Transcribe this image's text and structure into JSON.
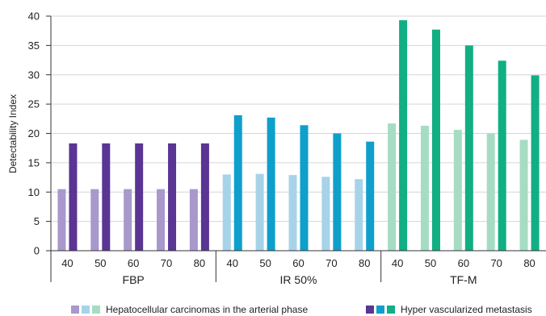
{
  "chart_data": {
    "type": "bar",
    "ylabel": "Detectability Index",
    "ylim": [
      0,
      40
    ],
    "yticks": [
      0,
      5,
      10,
      15,
      20,
      25,
      30,
      35,
      40
    ],
    "grid": true,
    "groups": [
      {
        "name": "FBP",
        "categories": [
          "40",
          "50",
          "60",
          "70",
          "80"
        ],
        "series": [
          {
            "name": "Hepatocellular carcinomas in the arterial phase",
            "color": "#a898cc",
            "values": [
              10.5,
              10.5,
              10.5,
              10.5,
              10.5
            ]
          },
          {
            "name": "Hyper vascularized metastasis",
            "color": "#5a3593",
            "values": [
              18.3,
              18.3,
              18.3,
              18.3,
              18.3
            ]
          }
        ]
      },
      {
        "name": "IR 50%",
        "categories": [
          "40",
          "50",
          "60",
          "70",
          "80"
        ],
        "series": [
          {
            "name": "Hepatocellular carcinomas in the arterial phase",
            "color": "#a7d3e8",
            "values": [
              13.0,
              13.1,
              12.9,
              12.6,
              12.2
            ]
          },
          {
            "name": "Hyper vascularized metastasis",
            "color": "#0e9fcb",
            "values": [
              23.1,
              22.7,
              21.4,
              20.0,
              18.6
            ]
          }
        ]
      },
      {
        "name": "TF-M",
        "categories": [
          "40",
          "50",
          "60",
          "70",
          "80"
        ],
        "series": [
          {
            "name": "Hepatocellular carcinomas in the arterial phase",
            "color": "#a6dcc3",
            "values": [
              21.7,
              21.3,
              20.6,
              20.0,
              18.9
            ]
          },
          {
            "name": "Hyper vascularized metastasis",
            "color": "#12ae84",
            "values": [
              39.3,
              37.7,
              35.0,
              32.4,
              29.9
            ]
          }
        ]
      }
    ],
    "legend": {
      "placement": "bottom",
      "entries": [
        {
          "label": "Hepatocellular carcinomas in the arterial phase",
          "colors": [
            "#a898cc",
            "#a7d3e8",
            "#a6dcc3"
          ]
        },
        {
          "label": "Hyper vascularized metastasis",
          "colors": [
            "#5a3593",
            "#0e9fcb",
            "#12ae84"
          ]
        }
      ]
    }
  }
}
